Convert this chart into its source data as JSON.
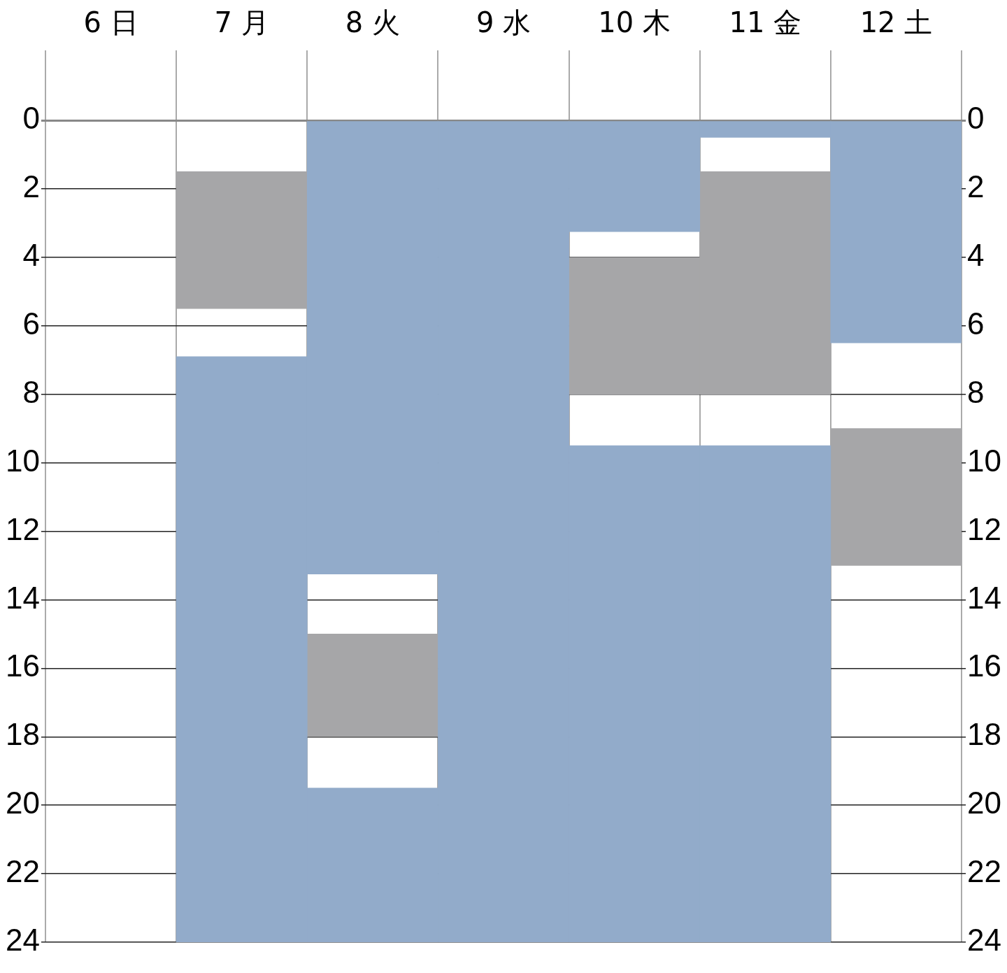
{
  "chart_data": {
    "type": "bar",
    "categories": [
      "6 日",
      "7 月",
      "8 火",
      "9 水",
      "10 木",
      "11 金",
      "12 土"
    ],
    "series": [
      {
        "color": "#92abca",
        "base": [
          null,
          6.9,
          0,
          0,
          0,
          0,
          0
        ],
        "values": [
          null,
          17.1,
          13.25,
          24,
          3.25,
          0.5,
          6.5
        ]
      },
      {
        "color": "#92abca",
        "base": [
          null,
          null,
          19.5,
          null,
          9.5,
          9.5,
          null
        ],
        "values": [
          null,
          null,
          4.5,
          null,
          14.5,
          14.5,
          null
        ]
      },
      {
        "color": "#a6a6a8",
        "base": [
          null,
          1.5,
          15,
          null,
          4,
          1.5,
          9
        ],
        "values": [
          null,
          4,
          3,
          null,
          4,
          6.5,
          4
        ]
      }
    ],
    "ylim": [
      24,
      0
    ],
    "yticks": [
      0,
      2,
      4,
      6,
      8,
      10,
      12,
      14,
      16,
      18,
      20,
      22,
      24
    ],
    "y2lim": [
      24,
      0
    ],
    "y2ticks": [
      0,
      2,
      4,
      6,
      8,
      10,
      12,
      14,
      16,
      18,
      20,
      22,
      24
    ],
    "grid": true,
    "legend": false
  }
}
